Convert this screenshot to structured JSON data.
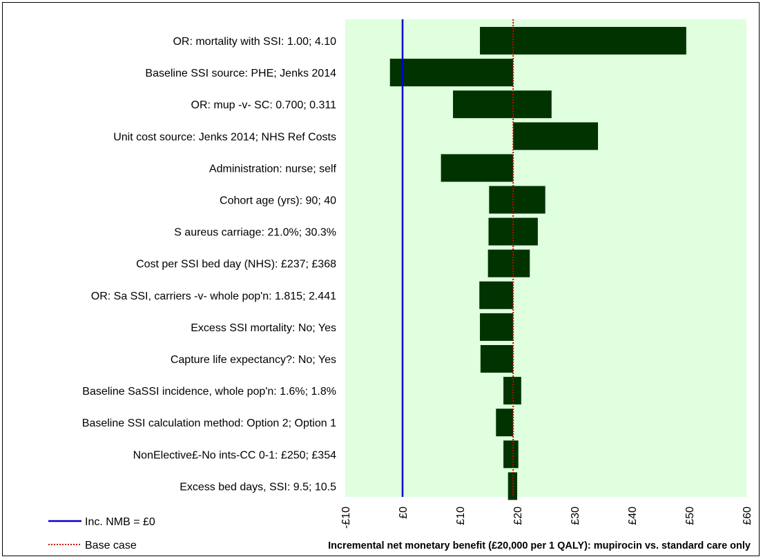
{
  "chart_data": {
    "type": "tornado",
    "xlabel": "Incremental net monetary benefit (£20,000 per 1 QALY): mupirocin vs. standard care only",
    "xlim": [
      -10,
      60
    ],
    "xticks": [
      -10,
      0,
      10,
      20,
      30,
      40,
      50,
      60
    ],
    "xtick_labels": [
      "-£10",
      "£0",
      "£10",
      "£20",
      "£30",
      "£40",
      "£50",
      "£60"
    ],
    "base_case": 19.3,
    "reference_line": 0,
    "background_color": "#dfffdf",
    "bar_color": "#003300",
    "reference_line_color": "#0000cc",
    "base_case_color": "#cc0000",
    "legend": [
      {
        "label": "Inc. NMB = £0",
        "style": "solid",
        "color": "#0000cc"
      },
      {
        "label": "Base case",
        "style": "dotted",
        "color": "#cc0000"
      }
    ],
    "categories": [
      "OR: mortality with SSI: 1.00; 4.10",
      "Baseline SSI source: PHE; Jenks 2014",
      "OR: mup -v- SC: 0.700; 0.311",
      "Unit cost source: Jenks 2014; NHS Ref Costs",
      "Administration: nurse; self",
      "Cohort age (yrs): 90; 40",
      "S aureus carriage: 21.0%; 30.3%",
      "Cost per SSI bed day (NHS): £237; £368",
      "OR: Sa SSI, carriers -v- whole pop'n: 1.815; 2.441",
      "Excess SSI mortality: No; Yes",
      "Capture life expectancy?: No; Yes",
      "Baseline SaSSI incidence, whole pop'n: 1.6%; 1.8%",
      "Baseline SSI calculation method: Option 2; Option 1",
      "NonElective£-No ints-CC 0-1: £250; £354",
      "Excess bed days, SSI: 9.5; 10.5"
    ],
    "low": [
      13.5,
      -2.2,
      8.8,
      19.3,
      6.7,
      15.1,
      15.0,
      14.9,
      13.4,
      13.5,
      13.6,
      17.6,
      16.3,
      17.6,
      18.4
    ],
    "high": [
      49.5,
      19.3,
      26.0,
      34.1,
      19.3,
      24.9,
      23.6,
      22.2,
      19.3,
      19.3,
      19.3,
      20.7,
      19.3,
      20.2,
      20.0
    ]
  }
}
